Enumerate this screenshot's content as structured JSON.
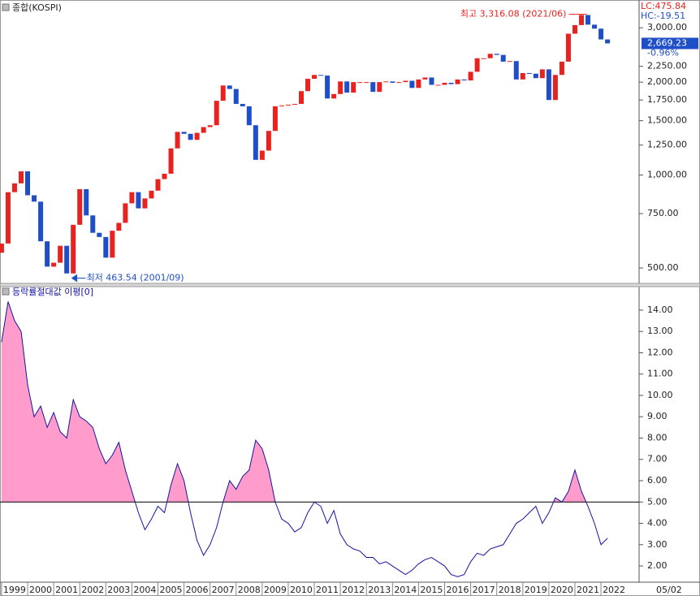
{
  "chart_data": [
    {
      "type": "candlestick",
      "title": "종합(KOSPI)",
      "log_scale": true,
      "up_color": "#e8231f",
      "down_color": "#1f4fc8",
      "x": [
        1999,
        1999.25,
        1999.5,
        1999.75,
        2000,
        2000.25,
        2000.5,
        2000.75,
        2001,
        2001.25,
        2001.5,
        2001.75,
        2002,
        2002.25,
        2002.5,
        2002.75,
        2003,
        2003.25,
        2003.5,
        2003.75,
        2004,
        2004.25,
        2004.5,
        2004.75,
        2005,
        2005.25,
        2005.5,
        2005.75,
        2006,
        2006.25,
        2006.5,
        2006.75,
        2007,
        2007.25,
        2007.5,
        2007.75,
        2008,
        2008.25,
        2008.5,
        2008.75,
        2009,
        2009.25,
        2009.5,
        2009.75,
        2010,
        2010.25,
        2010.5,
        2010.75,
        2011,
        2011.25,
        2011.5,
        2011.75,
        2012,
        2012.25,
        2012.5,
        2012.75,
        2013,
        2013.25,
        2013.5,
        2013.75,
        2014,
        2014.25,
        2014.5,
        2014.75,
        2015,
        2015.25,
        2015.5,
        2015.75,
        2016,
        2016.25,
        2016.5,
        2016.75,
        2017,
        2017.25,
        2017.5,
        2017.75,
        2018,
        2018.25,
        2018.5,
        2018.75,
        2019,
        2019.25,
        2019.5,
        2019.75,
        2020,
        2020.25,
        2020.5,
        2020.75,
        2021,
        2021.25,
        2021.5,
        2021.75,
        2022,
        2022.25
      ],
      "open": [
        560,
        600,
        880,
        940,
        1028,
        860,
        820,
        610,
        505,
        520,
        590,
        480,
        690,
        900,
        740,
        650,
        630,
        540,
        660,
        700,
        810,
        880,
        780,
        840,
        890,
        970,
        1010,
        1220,
        1380,
        1360,
        1300,
        1370,
        1430,
        1450,
        1740,
        1950,
        1900,
        1700,
        1670,
        1450,
        1120,
        1200,
        1390,
        1670,
        1680,
        1690,
        1700,
        1870,
        2050,
        2110,
        2100,
        1770,
        1830,
        2010,
        1850,
        2000,
        2000,
        2000,
        1860,
        2000,
        2010,
        1990,
        2000,
        2020,
        1915,
        2040,
        2070,
        1960,
        1960,
        1990,
        1970,
        2040,
        2025,
        2160,
        2390,
        2390,
        2470,
        2450,
        2330,
        2340,
        2040,
        2140,
        2130,
        2060,
        2200,
        1750,
        2110,
        2330,
        2870,
        3060,
        3300,
        3070,
        2980,
        2750
      ],
      "close": [
        600,
        880,
        940,
        1028,
        860,
        820,
        610,
        505,
        520,
        590,
        480,
        690,
        900,
        740,
        650,
        630,
        540,
        660,
        700,
        810,
        880,
        780,
        840,
        890,
        970,
        1010,
        1220,
        1380,
        1360,
        1300,
        1370,
        1430,
        1450,
        1740,
        1950,
        1900,
        1700,
        1670,
        1450,
        1120,
        1200,
        1390,
        1670,
        1680,
        1690,
        1700,
        1870,
        2050,
        2110,
        2100,
        1770,
        1830,
        2010,
        1850,
        2000,
        2000,
        2000,
        1860,
        2000,
        2010,
        1990,
        2000,
        2020,
        1915,
        2040,
        2070,
        1960,
        1960,
        1990,
        1970,
        2040,
        2025,
        2160,
        2390,
        2390,
        2470,
        2450,
        2330,
        2340,
        2040,
        2140,
        2130,
        2060,
        2200,
        1750,
        2110,
        2330,
        2870,
        3060,
        3300,
        3070,
        2980,
        2750,
        2670
      ],
      "xlim": [
        1998.94,
        2023.4
      ],
      "ylim": [
        443,
        3690
      ],
      "yticks": [
        {
          "value": 500,
          "label": "500.00"
        },
        {
          "value": 750,
          "label": "750.00"
        },
        {
          "value": 1000,
          "label": "1,000.00"
        },
        {
          "value": 1250,
          "label": "1,250.00"
        },
        {
          "value": 1500,
          "label": "1,500.00"
        },
        {
          "value": 1750,
          "label": "1,750.00"
        },
        {
          "value": 2000,
          "label": "2,000.00"
        },
        {
          "value": 2250,
          "label": "2,250.00"
        },
        {
          "value": 3000,
          "label": "3,000.00"
        }
      ],
      "annotations": [
        {
          "text": "최고 3,316.08 (2021/06)",
          "x": 2021.45,
          "y": 3316.08,
          "color": "#e8231f"
        },
        {
          "text": "최저 463.54 (2001/09)",
          "x": 2001.7,
          "y": 463.54,
          "color": "#1f4fc8"
        }
      ],
      "lc_label": "LC:475.84",
      "hc_label": "HC:-19.51",
      "last_price": {
        "value": 2669.23,
        "label": "2,669.23"
      },
      "change_label": "-0.96%"
    },
    {
      "type": "area",
      "title": "등락률절대값 이평[0]",
      "color": "#1414a0",
      "fill_color": "#ff9ccc",
      "threshold": 5,
      "x": [
        1999,
        1999.25,
        1999.5,
        1999.75,
        2000,
        2000.25,
        2000.5,
        2000.75,
        2001,
        2001.25,
        2001.5,
        2001.75,
        2002,
        2002.25,
        2002.5,
        2002.75,
        2003,
        2003.25,
        2003.5,
        2003.75,
        2004,
        2004.25,
        2004.5,
        2004.75,
        2005,
        2005.25,
        2005.5,
        2005.75,
        2006,
        2006.25,
        2006.5,
        2006.75,
        2007,
        2007.25,
        2007.5,
        2007.75,
        2008,
        2008.25,
        2008.5,
        2008.75,
        2009,
        2009.25,
        2009.5,
        2009.75,
        2010,
        2010.25,
        2010.5,
        2010.75,
        2011,
        2011.25,
        2011.5,
        2011.75,
        2012,
        2012.25,
        2012.5,
        2012.75,
        2013,
        2013.25,
        2013.5,
        2013.75,
        2014,
        2014.25,
        2014.5,
        2014.75,
        2015,
        2015.25,
        2015.5,
        2015.75,
        2016,
        2016.25,
        2016.5,
        2016.75,
        2017,
        2017.25,
        2017.5,
        2017.75,
        2018,
        2018.25,
        2018.5,
        2018.75,
        2019,
        2019.25,
        2019.5,
        2019.75,
        2020,
        2020.25,
        2020.5,
        2020.75,
        2021,
        2021.25,
        2021.5,
        2021.75,
        2022,
        2022.25
      ],
      "values": [
        12.5,
        14.4,
        13.5,
        13,
        10.5,
        9,
        9.5,
        8.5,
        9.2,
        8.3,
        8,
        9.8,
        9,
        8.8,
        8.5,
        7.5,
        6.8,
        7.2,
        7.8,
        6.5,
        5.5,
        4.5,
        3.7,
        4.2,
        4.8,
        4.5,
        5.8,
        6.8,
        6,
        4.5,
        3.2,
        2.5,
        3,
        3.8,
        5,
        6,
        5.6,
        6.2,
        6.5,
        7.9,
        7.5,
        6.5,
        5,
        4.2,
        4,
        3.6,
        3.8,
        4.5,
        5,
        4.8,
        4,
        4.6,
        3.5,
        3,
        2.8,
        2.7,
        2.4,
        2.4,
        2.1,
        2.2,
        2,
        1.8,
        1.6,
        1.8,
        2.1,
        2.3,
        2.4,
        2.2,
        2,
        1.6,
        1.5,
        1.6,
        2.2,
        2.6,
        2.5,
        2.8,
        2.9,
        3,
        3.5,
        4,
        4.2,
        4.5,
        4.8,
        4,
        4.5,
        5.2,
        5,
        5.5,
        6.5,
        5.5,
        4.8,
        4,
        3,
        3.3
      ],
      "xlim": [
        1998.94,
        2023.4
      ],
      "ylim": [
        1.24,
        15.14
      ],
      "yticks": [
        {
          "value": 2,
          "label": "2.00"
        },
        {
          "value": 3,
          "label": "3.00"
        },
        {
          "value": 4,
          "label": "4.00"
        },
        {
          "value": 5,
          "label": "5.00"
        },
        {
          "value": 6,
          "label": "6.00"
        },
        {
          "value": 7,
          "label": "7.00"
        },
        {
          "value": 8,
          "label": "8.00"
        },
        {
          "value": 9,
          "label": "9.00"
        },
        {
          "value": 10,
          "label": "10.00"
        },
        {
          "value": 11,
          "label": "11.00"
        },
        {
          "value": 12,
          "label": "12.00"
        },
        {
          "value": 13,
          "label": "13.00"
        },
        {
          "value": 14,
          "label": "14.00"
        }
      ],
      "xticks": [
        1999,
        2000,
        2001,
        2002,
        2003,
        2004,
        2005,
        2006,
        2007,
        2008,
        2009,
        2010,
        2011,
        2012,
        2013,
        2014,
        2015,
        2016,
        2017,
        2018,
        2019,
        2020,
        2021,
        2022
      ],
      "x_end_label": "05/02"
    }
  ]
}
